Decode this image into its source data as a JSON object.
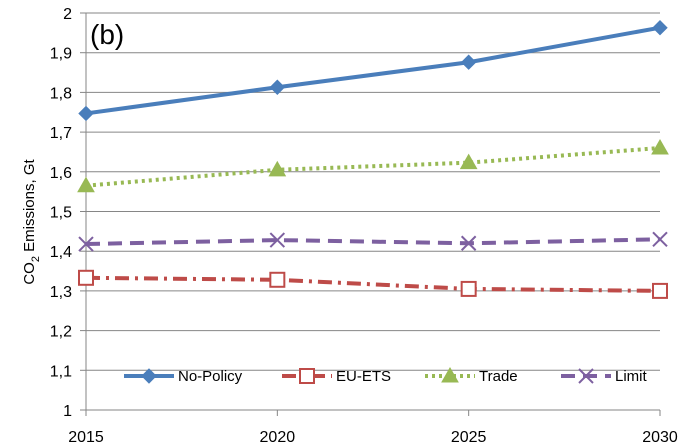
{
  "chart_data": {
    "type": "line",
    "panel_label": "(b)",
    "title": "",
    "xlabel": "",
    "ylabel": {
      "prefix": "CO",
      "subscript": "2",
      "suffix": " Emissions, Gt"
    },
    "x": [
      2015,
      2020,
      2025,
      2030
    ],
    "xlim": [
      2015,
      2030
    ],
    "ylim": [
      1,
      2
    ],
    "y_ticks": [
      "1",
      "1,1",
      "1,2",
      "1,3",
      "1,4",
      "1,5",
      "1,6",
      "1,7",
      "1,8",
      "1,9",
      "2"
    ],
    "x_ticks": [
      "2015",
      "2020",
      "2025",
      "2030"
    ],
    "grid": "horizontal",
    "legend_position": "bottom",
    "series": [
      {
        "name": "No-Policy",
        "values": [
          1.747,
          1.813,
          1.876,
          1.963
        ],
        "color": "#4a7ebb",
        "line_style": "solid",
        "marker": "diamond"
      },
      {
        "name": "EU-ETS",
        "values": [
          1.333,
          1.328,
          1.305,
          1.3
        ],
        "color": "#be4b48",
        "line_style": "dash-dot",
        "marker": "square-open"
      },
      {
        "name": "Trade",
        "values": [
          1.565,
          1.605,
          1.623,
          1.66
        ],
        "color": "#98b954",
        "line_style": "dotted",
        "marker": "triangle"
      },
      {
        "name": "Limit",
        "values": [
          1.418,
          1.428,
          1.42,
          1.43
        ],
        "color": "#7d60a0",
        "line_style": "dashed",
        "marker": "x"
      }
    ]
  }
}
